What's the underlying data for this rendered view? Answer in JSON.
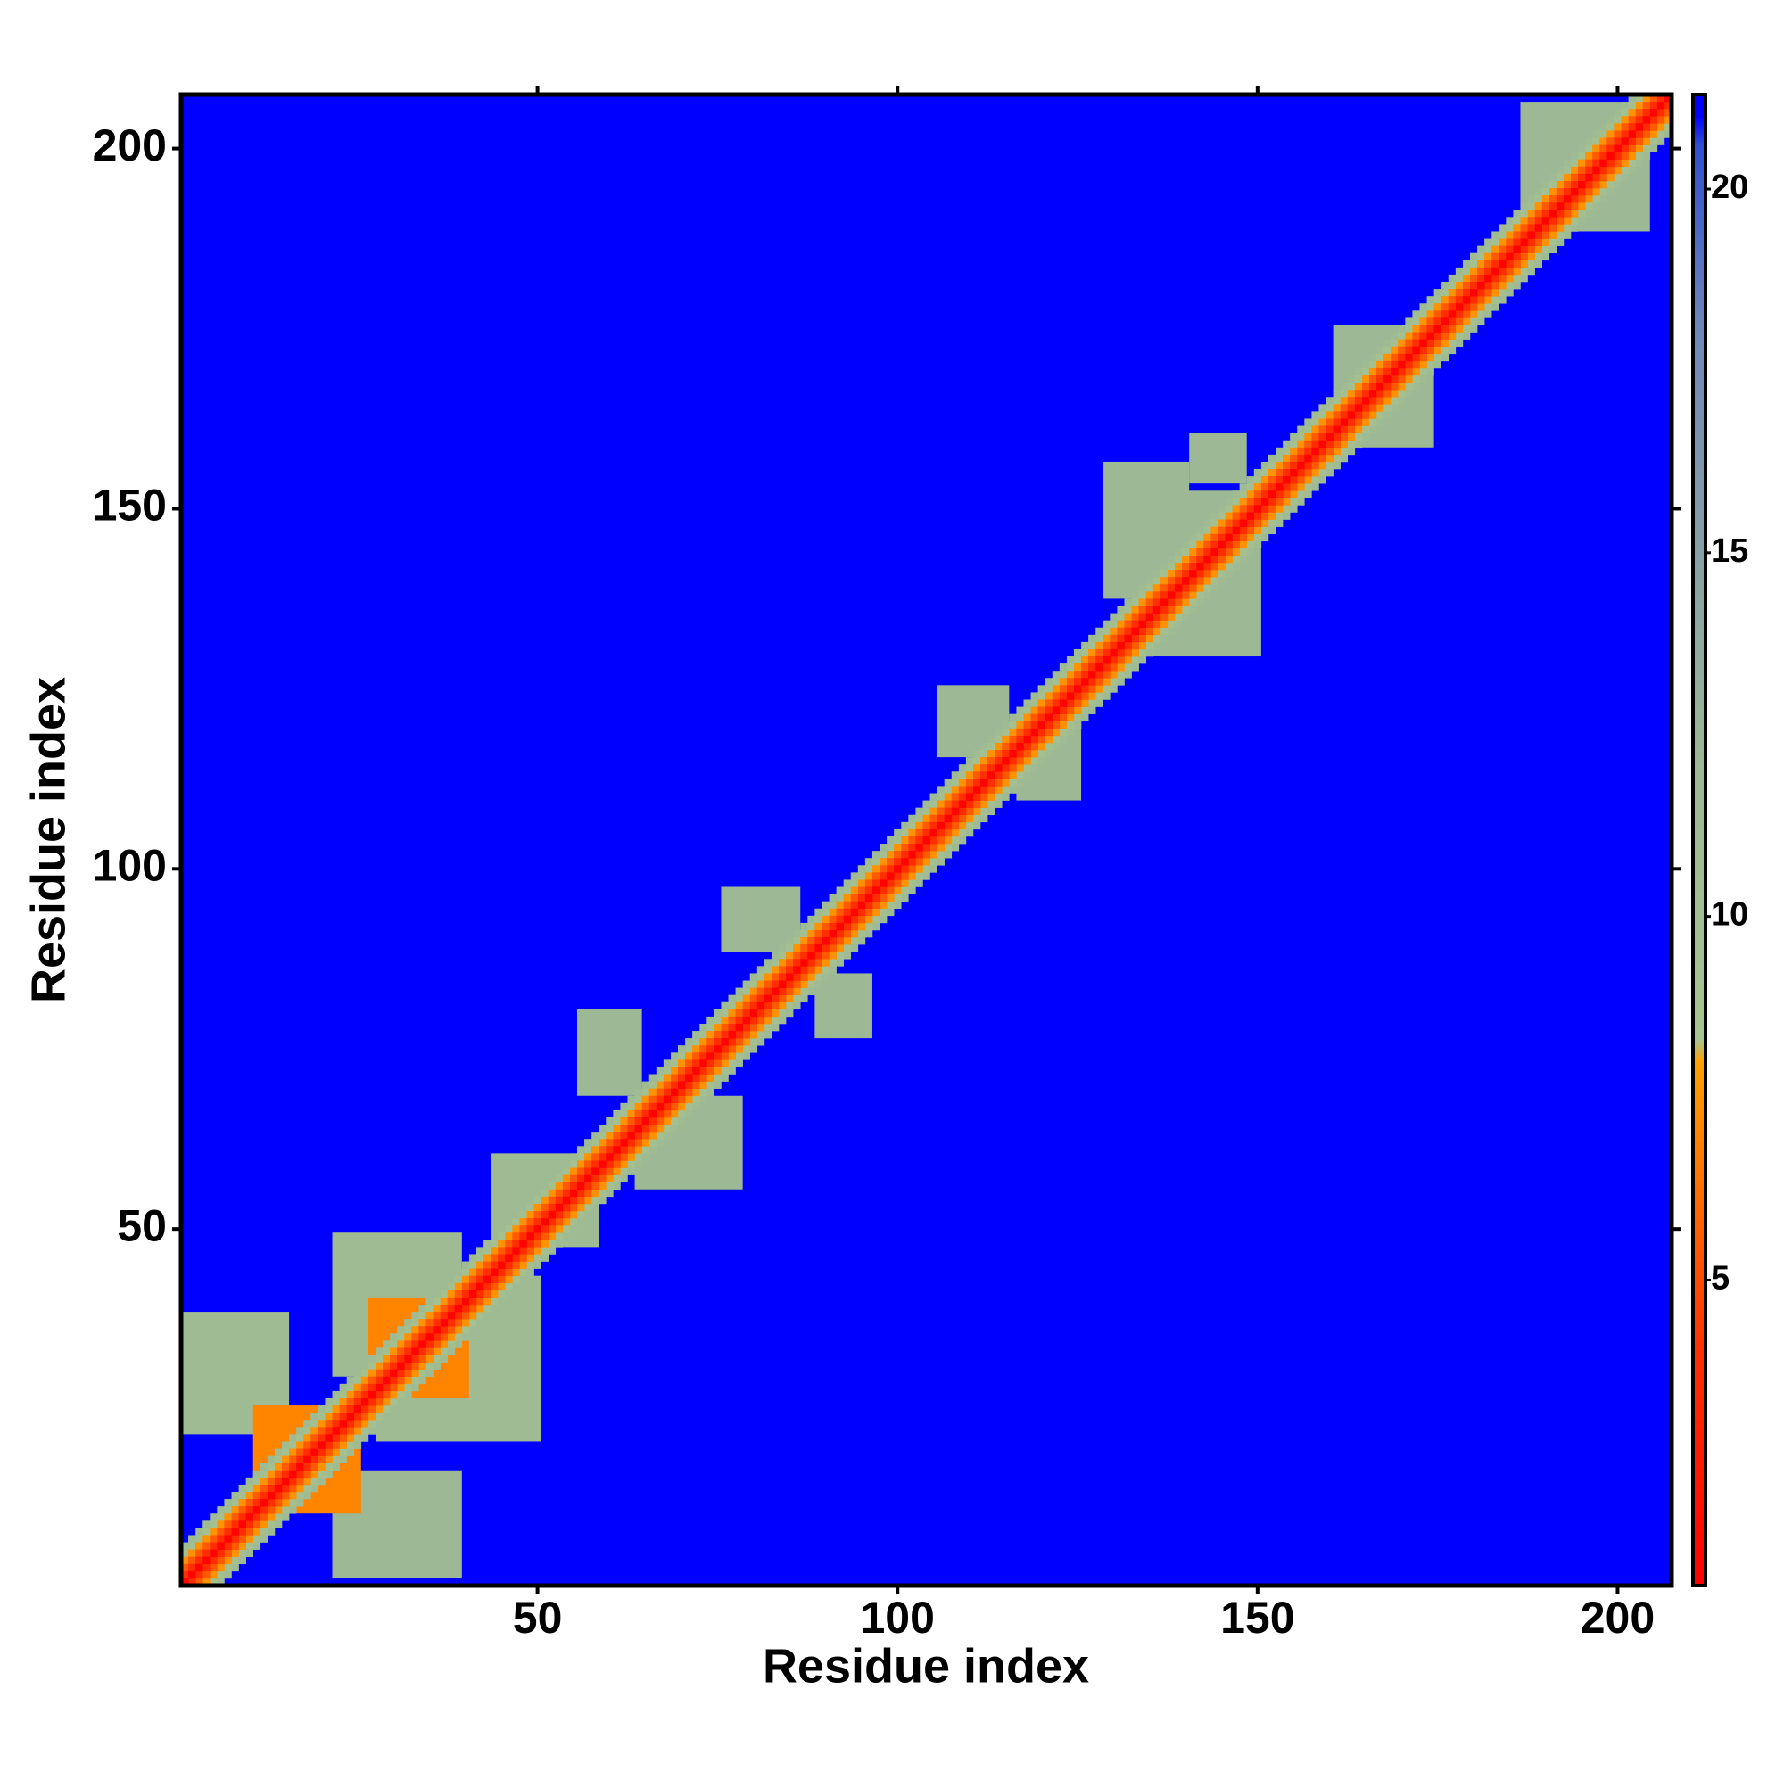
{
  "chart_data": {
    "type": "heatmap",
    "xlabel": "Residue index",
    "ylabel": "Residue index",
    "xlim": [
      0.5,
      207.5
    ],
    "ylim": [
      0.5,
      207.5
    ],
    "xticks": [
      50,
      100,
      150,
      200
    ],
    "yticks": [
      50,
      100,
      150,
      200
    ],
    "zlim": [
      0.8,
      21.3
    ],
    "zticks": [
      5,
      10,
      15,
      20
    ],
    "colorscale": [
      [
        0.8,
        "#ff0000"
      ],
      [
        4,
        "#ff3000"
      ],
      [
        8,
        "#ffa000"
      ],
      [
        8.3,
        "#a8c490"
      ],
      [
        12,
        "#9cb894"
      ],
      [
        18,
        "#7088b8"
      ],
      [
        20.6,
        "#3050d0"
      ],
      [
        21,
        "#0000ff"
      ]
    ],
    "background_value": 21.3,
    "diagonal_profile": [
      1,
      3.8,
      5.5,
      7.5,
      9.5,
      11
    ],
    "regions": [
      {
        "x": [
          1,
          15
        ],
        "y": [
          22,
          38
        ],
        "value": 11
      },
      {
        "x": [
          22,
          39
        ],
        "y": [
          30,
          49
        ],
        "value": 11
      },
      {
        "x": [
          44,
          58
        ],
        "y": [
          48,
          60
        ],
        "value": 11
      },
      {
        "x": [
          56,
          64
        ],
        "y": [
          69,
          80
        ],
        "value": 12
      },
      {
        "x": [
          76,
          86
        ],
        "y": [
          89,
          97
        ],
        "value": 12
      },
      {
        "x": [
          106,
          115
        ],
        "y": [
          116,
          125
        ],
        "value": 12
      },
      {
        "x": [
          129,
          140
        ],
        "y": [
          138,
          156
        ],
        "value": 12
      },
      {
        "x": [
          141,
          148
        ],
        "y": [
          154,
          160
        ],
        "value": 12
      },
      {
        "x": [
          22,
          39
        ],
        "y": [
          2,
          16
        ],
        "value": 12
      },
      {
        "x": [
          28,
          50
        ],
        "y": [
          21,
          43
        ],
        "value": 11
      },
      {
        "x": [
          64,
          78
        ],
        "y": [
          56,
          68
        ],
        "value": 12
      },
      {
        "x": [
          89,
          96
        ],
        "y": [
          77,
          85
        ],
        "value": 12
      },
      {
        "x": [
          117,
          125
        ],
        "y": [
          110,
          119
        ],
        "value": 12
      },
      {
        "x": [
          136,
          150
        ],
        "y": [
          130,
          152
        ],
        "value": 12
      },
      {
        "x": [
          161,
          174
        ],
        "y": [
          159,
          175
        ],
        "value": 12
      },
      {
        "x": [
          187,
          204
        ],
        "y": [
          189,
          206
        ],
        "value": 12
      },
      {
        "x": [
          11,
          25
        ],
        "y": [
          11,
          25
        ],
        "value": 7
      },
      {
        "x": [
          27,
          40
        ],
        "y": [
          27,
          40
        ],
        "value": 7
      }
    ]
  }
}
